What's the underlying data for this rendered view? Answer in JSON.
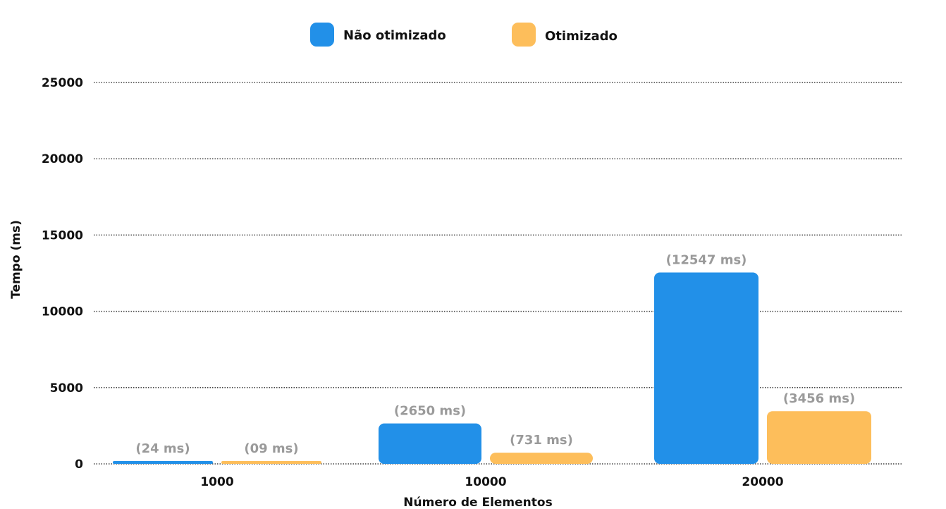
{
  "chart_data": {
    "type": "bar",
    "categories": [
      "1000",
      "10000",
      "20000"
    ],
    "series": [
      {
        "name": "Não otimizado",
        "color": "#2290E8",
        "values": [
          24,
          2650,
          12547
        ],
        "labels": [
          "(24 ms)",
          "(2650 ms)",
          "(12547 ms)"
        ]
      },
      {
        "name": "Otimizado",
        "color": "#FDBE5B",
        "values": [
          9,
          731,
          3456
        ],
        "labels": [
          "(09 ms)",
          "(731 ms)",
          "(3456 ms)"
        ]
      }
    ],
    "xlabel": "Número de Elementos",
    "ylabel": "Tempo (ms)",
    "ylim": [
      0,
      25000
    ],
    "yticks": [
      0,
      5000,
      10000,
      15000,
      20000,
      25000
    ],
    "grid": true,
    "legend_position": "top-center"
  }
}
